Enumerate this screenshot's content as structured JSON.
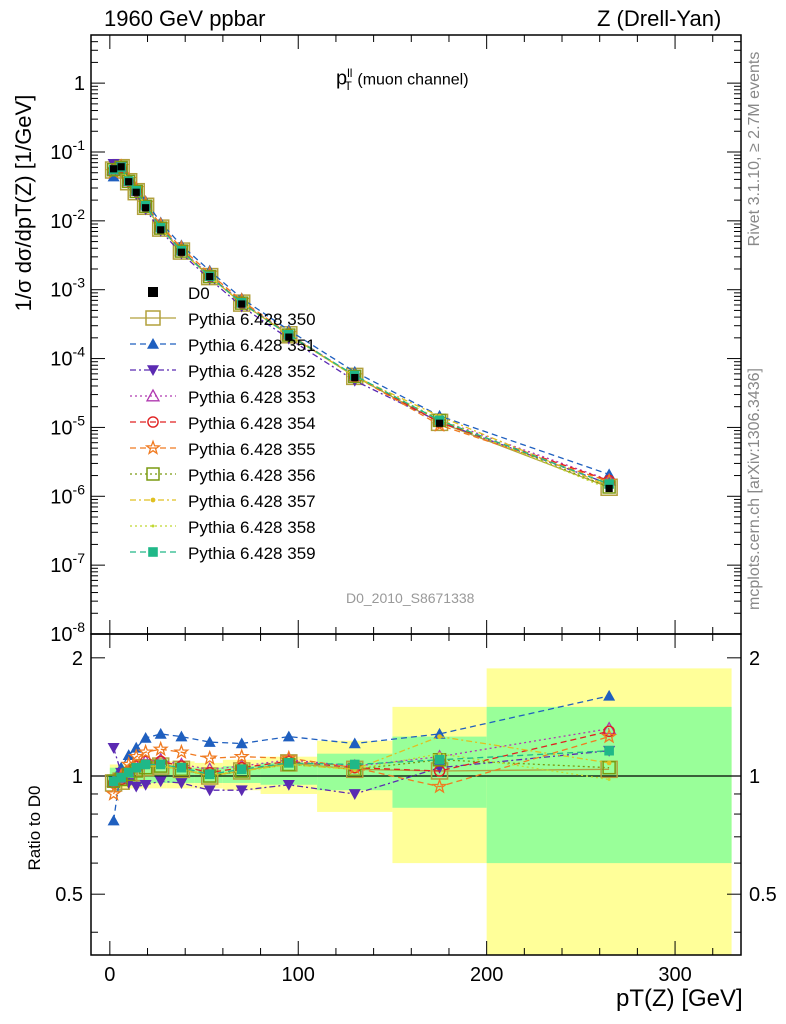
{
  "header": {
    "left": "1960 GeV ppbar",
    "right": "Z (Drell-Yan)"
  },
  "side": {
    "rivet": "Rivet 3.1.10, ≥ 2.7M events",
    "mcplots": "mcplots.cern.ch [arXiv:1306.3436]"
  },
  "analysis_id": "D0_2010_S8671338",
  "colors": {
    "data": "#000000",
    "band_inner": "#99ff99",
    "band_outer": "#ffff99"
  },
  "chart_data": [
    {
      "type": "line",
      "panel": "main",
      "title": "pT^ll (muon channel)",
      "title_main": "p",
      "title_sup": "ll",
      "title_sub": "T",
      "title_rest": "(muon channel)",
      "ylabel": "1/σ dσ/dpT(Z) [1/GeV]",
      "yscale": "log",
      "ylim": [
        1e-08,
        5
      ],
      "xlim": [
        -10,
        335
      ],
      "ytick_labels": [
        "1",
        "10^-1",
        "10^-2",
        "10^-3",
        "10^-4",
        "10^-5",
        "10^-6",
        "10^-7",
        "10^-8"
      ],
      "x": [
        2,
        6,
        10,
        14,
        19,
        27,
        38,
        53,
        70,
        95,
        130,
        175,
        265
      ],
      "data": {
        "name": "D0",
        "values": [
          0.057,
          0.061,
          0.037,
          0.026,
          0.0155,
          0.0074,
          0.0035,
          0.00155,
          0.00062,
          0.000205,
          5.3e-05,
          1.15e-05,
          1.3e-06
        ]
      },
      "series": [
        {
          "name": "Pythia 6.428 350",
          "color": "#b2a03c",
          "dash": "",
          "marker": "open-square"
        },
        {
          "name": "Pythia 6.428 351",
          "color": "#1f5fbf",
          "dash": "6,4",
          "marker": "triangle-up"
        },
        {
          "name": "Pythia 6.428 352",
          "color": "#5b2ab2",
          "dash": "6,3,2,3",
          "marker": "triangle-down"
        },
        {
          "name": "Pythia 6.428 353",
          "color": "#b03ab0",
          "dash": "2,3",
          "marker": "open-triangle"
        },
        {
          "name": "Pythia 6.428 354",
          "color": "#e02020",
          "dash": "6,4",
          "marker": "open-circle"
        },
        {
          "name": "Pythia 6.428 355",
          "color": "#f07a20",
          "dash": "6,4",
          "marker": "open-star"
        },
        {
          "name": "Pythia 6.428 356",
          "color": "#7a9a10",
          "dash": "2,3",
          "marker": "open-square"
        },
        {
          "name": "Pythia 6.428 357",
          "color": "#e0c020",
          "dash": "6,3,2,3",
          "marker": "dot"
        },
        {
          "name": "Pythia 6.428 358",
          "color": "#c0d830",
          "dash": "2,3",
          "marker": "small-dot"
        },
        {
          "name": "Pythia 6.428 359",
          "color": "#20b888",
          "dash": "6,4",
          "marker": "filled-square"
        }
      ]
    },
    {
      "type": "line",
      "panel": "ratio",
      "ylabel": "Ratio to D0",
      "xlabel": "pT(Z) [GeV]",
      "ylim": [
        0.35,
        2.3
      ],
      "xlim": [
        -10,
        335
      ],
      "yticks": [
        0.5,
        1,
        2
      ],
      "ytick_labels": [
        "0.5",
        "1",
        "2"
      ],
      "xticks": [
        0,
        100,
        200,
        300
      ],
      "xtick_labels": [
        "0",
        "100",
        "200",
        "300"
      ],
      "x": [
        2,
        6,
        10,
        14,
        19,
        27,
        38,
        53,
        70,
        95,
        130,
        175,
        265
      ],
      "bands": [
        {
          "x0": 0,
          "x1": 10,
          "inner": [
            0.95,
            1.05
          ],
          "outer": [
            0.93,
            1.07
          ]
        },
        {
          "x0": 10,
          "x1": 20,
          "inner": [
            0.95,
            1.05
          ],
          "outer": [
            0.93,
            1.08
          ]
        },
        {
          "x0": 20,
          "x1": 30,
          "inner": [
            0.96,
            1.04
          ],
          "outer": [
            0.93,
            1.07
          ]
        },
        {
          "x0": 30,
          "x1": 45,
          "inner": [
            0.96,
            1.05
          ],
          "outer": [
            0.93,
            1.09
          ]
        },
        {
          "x0": 45,
          "x1": 60,
          "inner": [
            0.96,
            1.05
          ],
          "outer": [
            0.93,
            1.08
          ]
        },
        {
          "x0": 60,
          "x1": 80,
          "inner": [
            0.96,
            1.06
          ],
          "outer": [
            0.92,
            1.1
          ]
        },
        {
          "x0": 80,
          "x1": 110,
          "inner": [
            0.95,
            1.08
          ],
          "outer": [
            0.9,
            1.12
          ]
        },
        {
          "x0": 110,
          "x1": 150,
          "inner": [
            0.92,
            1.14
          ],
          "outer": [
            0.81,
            1.23
          ]
        },
        {
          "x0": 150,
          "x1": 200,
          "inner": [
            0.83,
            1.26
          ],
          "outer": [
            0.6,
            1.5
          ]
        },
        {
          "x0": 200,
          "x1": 330,
          "inner": [
            0.6,
            1.5
          ],
          "outer": [
            0.35,
            1.88
          ]
        }
      ],
      "series": [
        {
          "name": "Pythia 6.428 350",
          "values": [
            0.96,
            0.97,
            1.0,
            1.02,
            1.05,
            1.06,
            1.04,
            1.0,
            1.03,
            1.08,
            1.04,
            1.03,
            1.04
          ]
        },
        {
          "name": "Pythia 6.428 351",
          "values": [
            0.77,
            1.05,
            1.13,
            1.18,
            1.25,
            1.28,
            1.26,
            1.22,
            1.21,
            1.26,
            1.21,
            1.28,
            1.6
          ]
        },
        {
          "name": "Pythia 6.428 352",
          "values": [
            1.18,
            1.02,
            0.96,
            0.94,
            0.95,
            0.97,
            0.96,
            0.92,
            0.92,
            0.95,
            0.9,
            1.05,
            1.16
          ]
        },
        {
          "name": "Pythia 6.428 353",
          "values": [
            0.97,
            0.99,
            1.03,
            1.06,
            1.09,
            1.1,
            1.07,
            1.04,
            1.06,
            1.1,
            1.06,
            1.12,
            1.32
          ]
        },
        {
          "name": "Pythia 6.428 354",
          "values": [
            0.96,
            0.98,
            1.03,
            1.06,
            1.09,
            1.09,
            1.06,
            1.02,
            1.05,
            1.09,
            1.05,
            1.03,
            1.3
          ]
        },
        {
          "name": "Pythia 6.428 355",
          "values": [
            0.9,
            1.0,
            1.07,
            1.12,
            1.15,
            1.17,
            1.15,
            1.11,
            1.12,
            1.11,
            1.05,
            0.94,
            1.26
          ]
        },
        {
          "name": "Pythia 6.428 356",
          "values": [
            0.97,
            0.98,
            1.01,
            1.03,
            1.05,
            1.06,
            1.04,
            1.0,
            1.03,
            1.07,
            1.04,
            1.1,
            1.05
          ]
        },
        {
          "name": "Pythia 6.428 357",
          "values": [
            0.98,
            0.99,
            1.02,
            1.04,
            1.06,
            1.06,
            1.04,
            1.0,
            1.03,
            1.07,
            1.04,
            1.26,
            1.08
          ]
        },
        {
          "name": "Pythia 6.428 358",
          "values": [
            0.98,
            0.99,
            1.02,
            1.04,
            1.06,
            1.06,
            1.04,
            1.01,
            1.03,
            1.07,
            1.04,
            1.14,
            0.98
          ]
        },
        {
          "name": "Pythia 6.428 359",
          "values": [
            0.97,
            0.99,
            1.02,
            1.05,
            1.07,
            1.07,
            1.05,
            1.01,
            1.04,
            1.08,
            1.07,
            1.1,
            1.16
          ]
        }
      ]
    }
  ]
}
